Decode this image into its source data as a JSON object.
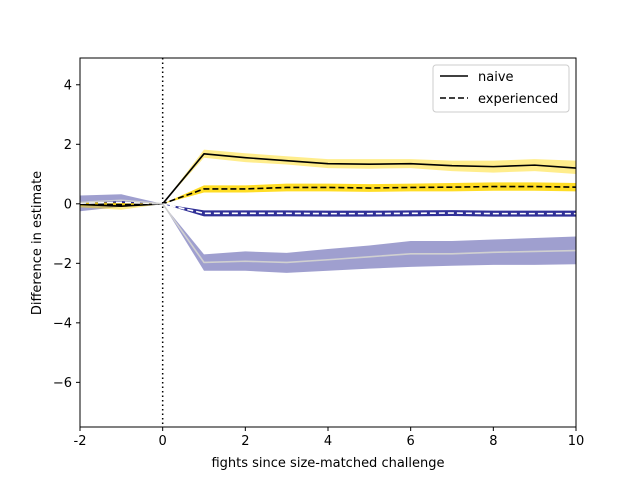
{
  "chart_data": {
    "type": "line",
    "title": "",
    "xlabel": "fights since size-matched challenge",
    "ylabel": "Difference in estimate",
    "xlim": [
      -2,
      10
    ],
    "ylim": [
      -7.5,
      4.9
    ],
    "xticks": [
      -2,
      0,
      2,
      4,
      6,
      8,
      10
    ],
    "xtick_labels": [
      "-2",
      "0",
      "2",
      "4",
      "6",
      "8",
      "10"
    ],
    "yticks": [
      -6,
      -4,
      -2,
      0,
      2,
      4
    ],
    "ytick_labels": [
      "−6",
      "−4",
      "−2",
      "0",
      "2",
      "4"
    ],
    "grid": false,
    "legend_position": "top-right",
    "legend": [
      {
        "label": "naive",
        "style": "solid"
      },
      {
        "label": "experienced",
        "style": "dashed"
      }
    ],
    "vline": {
      "x": 0,
      "style": "dotted",
      "color": "#000000"
    },
    "x": [
      -2,
      -1,
      0,
      1,
      2,
      3,
      4,
      5,
      6,
      7,
      8,
      9,
      10
    ],
    "series": [
      {
        "group": "yellow",
        "style": "solid",
        "line_color": "#000000",
        "band_color": "#ffd700",
        "band_opacity": 0.45,
        "values": [
          -0.02,
          -0.08,
          0.0,
          1.68,
          1.55,
          1.45,
          1.35,
          1.33,
          1.35,
          1.28,
          1.25,
          1.3,
          1.2
        ],
        "lower": [
          -0.12,
          -0.2,
          0.0,
          1.55,
          1.4,
          1.32,
          1.2,
          1.18,
          1.2,
          1.1,
          1.05,
          1.1,
          1.0
        ],
        "upper": [
          0.08,
          0.05,
          0.0,
          1.82,
          1.7,
          1.6,
          1.5,
          1.5,
          1.5,
          1.45,
          1.45,
          1.5,
          1.45
        ]
      },
      {
        "group": "yellow",
        "style": "dashed",
        "line_color": "#000000",
        "band_color": "#ffd700",
        "band_opacity": 0.85,
        "values": [
          0.0,
          -0.03,
          0.0,
          0.5,
          0.5,
          0.55,
          0.55,
          0.53,
          0.55,
          0.56,
          0.58,
          0.58,
          0.56
        ],
        "lower": [
          -0.06,
          -0.09,
          0.0,
          0.38,
          0.38,
          0.42,
          0.42,
          0.4,
          0.42,
          0.42,
          0.44,
          0.44,
          0.42
        ],
        "upper": [
          0.06,
          0.03,
          0.0,
          0.62,
          0.62,
          0.68,
          0.68,
          0.66,
          0.68,
          0.7,
          0.72,
          0.72,
          0.7
        ]
      },
      {
        "group": "blue",
        "style": "dashed",
        "line_color": "#ffffff",
        "band_color": "#1a1a8c",
        "band_opacity": 0.9,
        "values": [
          0.02,
          0.05,
          0.0,
          -0.32,
          -0.32,
          -0.32,
          -0.33,
          -0.33,
          -0.32,
          -0.31,
          -0.33,
          -0.33,
          -0.33
        ],
        "lower": [
          -0.04,
          -0.01,
          0.0,
          -0.42,
          -0.42,
          -0.42,
          -0.43,
          -0.43,
          -0.42,
          -0.41,
          -0.43,
          -0.43,
          -0.43
        ],
        "upper": [
          0.08,
          0.11,
          0.0,
          -0.22,
          -0.22,
          -0.22,
          -0.23,
          -0.23,
          -0.22,
          -0.21,
          -0.23,
          -0.23,
          -0.23
        ]
      },
      {
        "group": "blue",
        "style": "solid",
        "line_color": "#d0d0d0",
        "band_color": "#1a1a8c",
        "band_opacity": 0.42,
        "values": [
          0.05,
          0.12,
          0.0,
          -1.97,
          -1.93,
          -1.97,
          -1.88,
          -1.78,
          -1.68,
          -1.68,
          -1.63,
          -1.6,
          -1.57
        ],
        "lower": [
          -0.25,
          -0.1,
          0.0,
          -2.25,
          -2.25,
          -2.32,
          -2.25,
          -2.18,
          -2.12,
          -2.08,
          -2.05,
          -2.05,
          -2.03
        ],
        "upper": [
          0.28,
          0.32,
          0.0,
          -1.7,
          -1.6,
          -1.65,
          -1.52,
          -1.4,
          -1.25,
          -1.25,
          -1.2,
          -1.15,
          -1.1
        ]
      }
    ]
  }
}
